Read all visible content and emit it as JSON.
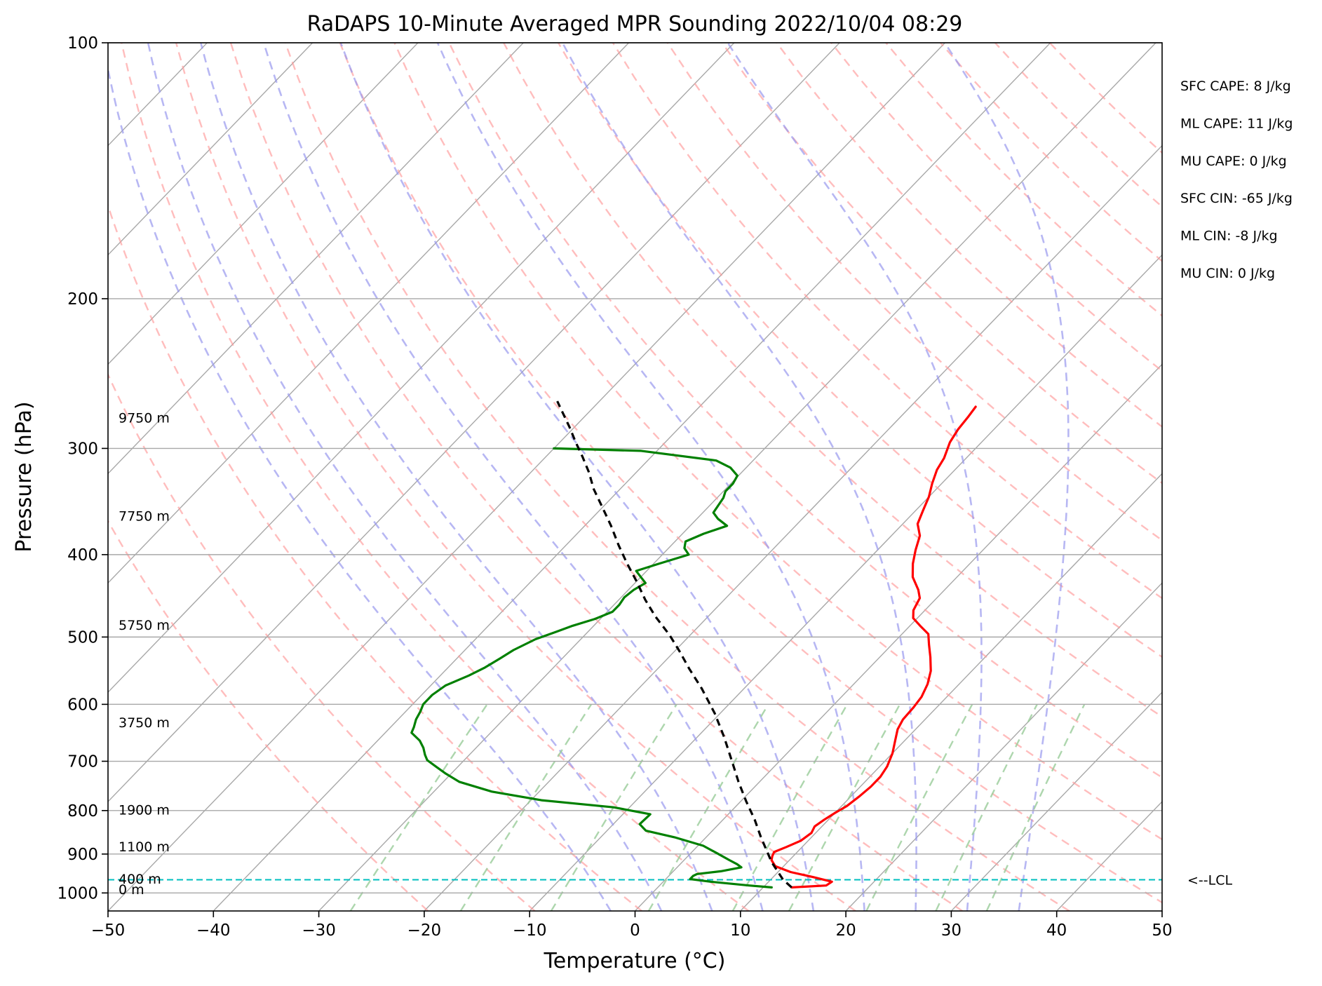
{
  "chart_data": {
    "type": "line",
    "title": "RaDAPS 10-Minute Averaged MPR Sounding 2022/10/04 08:29",
    "xlabel": "Temperature (°C)",
    "ylabel": "Pressure (hPa)",
    "xlim": [
      -50,
      50
    ],
    "ylim": [
      1050,
      100
    ],
    "y_scale": "log",
    "x_ticks": [
      -50,
      -40,
      -30,
      -20,
      -10,
      0,
      10,
      20,
      30,
      40,
      50
    ],
    "x_tick_labels": [
      "−50",
      "−40",
      "−30",
      "−20",
      "−10",
      "0",
      "10",
      "20",
      "30",
      "40",
      "50"
    ],
    "y_ticks": [
      100,
      200,
      300,
      400,
      500,
      600,
      700,
      800,
      900,
      1000
    ],
    "y_tick_labels": [
      "100",
      "200",
      "300",
      "400",
      "500",
      "600",
      "700",
      "800",
      "900",
      "1000"
    ],
    "grid": true,
    "series": [
      {
        "role": "temperature",
        "color": "#ff0000",
        "points": [
          [
            12.7,
            985
          ],
          [
            15.8,
            980
          ],
          [
            16.0,
            970
          ],
          [
            13.8,
            958
          ],
          [
            11.2,
            945
          ],
          [
            9.2,
            930
          ],
          [
            8.3,
            915
          ],
          [
            8.0,
            905
          ],
          [
            7.8,
            895
          ],
          [
            8.5,
            883
          ],
          [
            9.3,
            868
          ],
          [
            9.6,
            850
          ],
          [
            9.3,
            835
          ],
          [
            9.6,
            820
          ],
          [
            10.0,
            805
          ],
          [
            10.5,
            790
          ],
          [
            10.8,
            770
          ],
          [
            11.0,
            750
          ],
          [
            11.0,
            730
          ],
          [
            10.7,
            710
          ],
          [
            10.0,
            685
          ],
          [
            9.1,
            662
          ],
          [
            8.3,
            642
          ],
          [
            7.9,
            625
          ],
          [
            7.8,
            605
          ],
          [
            7.6,
            588
          ],
          [
            7.0,
            568
          ],
          [
            6.1,
            548
          ],
          [
            4.8,
            528
          ],
          [
            3.5,
            510
          ],
          [
            2.5,
            496
          ],
          [
            1.1,
            486
          ],
          [
            -0.4,
            475
          ],
          [
            -1.1,
            465
          ],
          [
            -1.6,
            450
          ],
          [
            -2.5,
            440
          ],
          [
            -4.2,
            425
          ],
          [
            -5.4,
            410
          ],
          [
            -6.4,
            395
          ],
          [
            -7.3,
            380
          ],
          [
            -8.6,
            368
          ],
          [
            -9.3,
            355
          ],
          [
            -10.0,
            342
          ],
          [
            -10.9,
            330
          ],
          [
            -11.7,
            318
          ],
          [
            -12.1,
            308
          ],
          [
            -13.0,
            295
          ],
          [
            -13.4,
            285
          ],
          [
            -13.6,
            275
          ],
          [
            -13.8,
            268
          ]
        ]
      },
      {
        "role": "dewpoint",
        "color": "#008000",
        "points": [
          [
            10.8,
            985
          ],
          [
            8.5,
            980
          ],
          [
            4.5,
            970
          ],
          [
            2.3,
            963
          ],
          [
            2.3,
            955
          ],
          [
            2.5,
            950
          ],
          [
            4.5,
            943
          ],
          [
            6.1,
            933
          ],
          [
            5.4,
            925
          ],
          [
            4.3,
            915
          ],
          [
            2.5,
            898
          ],
          [
            0.5,
            880
          ],
          [
            -3.0,
            860
          ],
          [
            -6.3,
            845
          ],
          [
            -7.5,
            830
          ],
          [
            -7.4,
            808
          ],
          [
            -11.5,
            793
          ],
          [
            -19.0,
            778
          ],
          [
            -24.5,
            760
          ],
          [
            -28.5,
            740
          ],
          [
            -30.5,
            724
          ],
          [
            -32.0,
            711
          ],
          [
            -33.5,
            698
          ],
          [
            -34.2,
            688
          ],
          [
            -35.0,
            675
          ],
          [
            -36.0,
            662
          ],
          [
            -37.5,
            648
          ],
          [
            -37.8,
            638
          ],
          [
            -38.3,
            625
          ],
          [
            -38.6,
            612
          ],
          [
            -39.0,
            600
          ],
          [
            -39.0,
            585
          ],
          [
            -38.6,
            570
          ],
          [
            -37.3,
            555
          ],
          [
            -36.5,
            543
          ],
          [
            -35.9,
            530
          ],
          [
            -35.4,
            518
          ],
          [
            -34.3,
            503
          ],
          [
            -33.0,
            493
          ],
          [
            -32.0,
            485
          ],
          [
            -30.5,
            476
          ],
          [
            -29.5,
            467
          ],
          [
            -29.5,
            458
          ],
          [
            -29.7,
            449
          ],
          [
            -29.5,
            440
          ],
          [
            -29.0,
            432
          ],
          [
            -30.0,
            425
          ],
          [
            -31.0,
            418
          ],
          [
            -29.5,
            410
          ],
          [
            -27.5,
            400
          ],
          [
            -28.5,
            393
          ],
          [
            -29.0,
            386
          ],
          [
            -28.0,
            378
          ],
          [
            -26.5,
            370
          ],
          [
            -28.0,
            363
          ],
          [
            -29.0,
            357
          ],
          [
            -29.2,
            350
          ],
          [
            -29.4,
            343
          ],
          [
            -29.8,
            337
          ],
          [
            -29.8,
            330
          ],
          [
            -30.1,
            323
          ],
          [
            -31.5,
            316
          ],
          [
            -33.5,
            310
          ],
          [
            -41.5,
            302
          ],
          [
            -50.0,
            300
          ]
        ]
      },
      {
        "role": "parcel",
        "color": "#000000",
        "points": [
          [
            12.7,
            985
          ],
          [
            11.2,
            965
          ],
          [
            8.5,
            920
          ],
          [
            5.2,
            860
          ],
          [
            3.0,
            820
          ],
          [
            0.5,
            780
          ],
          [
            -2.0,
            740
          ],
          [
            -4.5,
            700
          ],
          [
            -7.5,
            655
          ],
          [
            -10.5,
            615
          ],
          [
            -14.0,
            575
          ],
          [
            -17.0,
            545
          ],
          [
            -19.5,
            520
          ],
          [
            -22.0,
            497
          ],
          [
            -25.0,
            473
          ],
          [
            -27.5,
            452
          ],
          [
            -30.0,
            430
          ],
          [
            -32.5,
            410
          ],
          [
            -35.0,
            390
          ],
          [
            -37.5,
            370
          ],
          [
            -40.0,
            352
          ],
          [
            -42.5,
            335
          ],
          [
            -44.5,
            320
          ],
          [
            -46.5,
            307
          ],
          [
            -48.5,
            295
          ],
          [
            -50.5,
            283
          ],
          [
            -52.5,
            272
          ],
          [
            -54.0,
            264
          ]
        ]
      }
    ],
    "lcl_pressure": 965,
    "lcl_label": "<--LCL",
    "height_labels": [
      {
        "p": 990,
        "text": "0 m"
      },
      {
        "p": 962,
        "text": "400 m"
      },
      {
        "p": 882,
        "text": "1100 m"
      },
      {
        "p": 798,
        "text": "1900 m"
      },
      {
        "p": 630,
        "text": "3750 m"
      },
      {
        "p": 484,
        "text": "5750 m"
      },
      {
        "p": 360,
        "text": "7750 m"
      },
      {
        "p": 276,
        "text": "9750 m"
      }
    ],
    "indices": [
      "SFC CAPE: 8 J/kg",
      "ML CAPE: 11 J/kg",
      "MU CAPE: 0 J/kg",
      "SFC CIN: -65 J/kg",
      "ML CIN: -8 J/kg",
      "MU CIN: 0 J/kg"
    ],
    "isotherms_c": [
      -150,
      -140,
      -130,
      -120,
      -110,
      -100,
      -90,
      -80,
      -70,
      -60,
      -50,
      -40,
      -30,
      -20,
      -10,
      0,
      10,
      20,
      30,
      40,
      50
    ],
    "dry_adiabats_k": [
      250,
      260,
      270,
      280,
      290,
      300,
      310,
      320,
      330,
      340,
      350,
      360,
      370,
      380,
      390,
      400,
      410,
      420,
      430,
      440,
      450
    ],
    "moist_adiabats_c": [
      -5,
      0,
      5,
      10,
      15,
      20,
      25,
      30,
      35
    ],
    "mixing_ratios_gkg": [
      0.4,
      1,
      2,
      4,
      7,
      10,
      16,
      24,
      32
    ],
    "colors": {
      "temperature": "#ff0000",
      "dewpoint": "#008000",
      "parcel": "#000000",
      "lcl": "#00bfbf",
      "isotherm": "#a8a8a8",
      "dry_adiabat": "#ff9999",
      "moist_adiabat": "#9999ee",
      "mixing_ratio": "#99cc99"
    }
  }
}
